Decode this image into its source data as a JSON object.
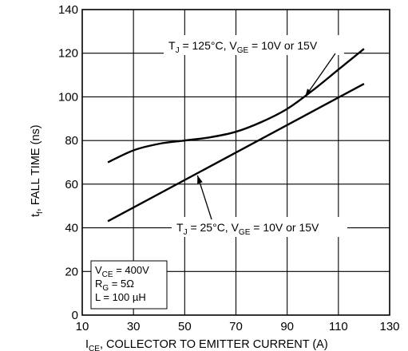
{
  "chart_data": {
    "type": "line",
    "title": "",
    "xlabel": {
      "main": "I",
      "sub": "CE",
      "rest": ", COLLECTOR TO EMITTER CURRENT (A)"
    },
    "ylabel": {
      "main": "t",
      "sub": "f",
      "rest": ", FALL TIME (ns)"
    },
    "xlim": [
      10,
      130
    ],
    "ylim": [
      0,
      140
    ],
    "xticks": [
      10,
      30,
      50,
      70,
      90,
      110,
      130
    ],
    "yticks": [
      0,
      20,
      40,
      60,
      80,
      100,
      120,
      140
    ],
    "grid": true,
    "series": [
      {
        "name": "",
        "points": [
          [
            20,
            70
          ],
          [
            30,
            75.5
          ],
          [
            40,
            78.5
          ],
          [
            50,
            80
          ],
          [
            60,
            81.5
          ],
          [
            70,
            84
          ],
          [
            80,
            88.5
          ],
          [
            90,
            94.5
          ],
          [
            100,
            103
          ],
          [
            110,
            112.5
          ],
          [
            120,
            122
          ]
        ]
      },
      {
        "name": "",
        "points": [
          [
            20,
            43
          ],
          [
            120,
            106
          ]
        ]
      }
    ],
    "annotations": [
      {
        "parts": [
          {
            "t": "T"
          },
          {
            "t": "J",
            "sub": true
          },
          {
            "t": " = 125°C, V"
          },
          {
            "t": "GE",
            "sub": true
          },
          {
            "t": " = 10V or 15V"
          }
        ],
        "arrow_to": [
          97,
          100
        ]
      },
      {
        "parts": [
          {
            "t": "T"
          },
          {
            "t": "J",
            "sub": true
          },
          {
            "t": " = 25°C, V"
          },
          {
            "t": "GE",
            "sub": true
          },
          {
            "t": " = 10V or 15V"
          }
        ],
        "arrow_to": [
          55,
          64
        ]
      }
    ],
    "conditions": [
      [
        {
          "t": "V"
        },
        {
          "t": "CE",
          "sub": true
        },
        {
          "t": " = 400V"
        }
      ],
      [
        {
          "t": "R"
        },
        {
          "t": "G",
          "sub": true
        },
        {
          "t": " = 5Ω"
        }
      ],
      [
        {
          "t": "L = 100 µH"
        }
      ]
    ]
  }
}
